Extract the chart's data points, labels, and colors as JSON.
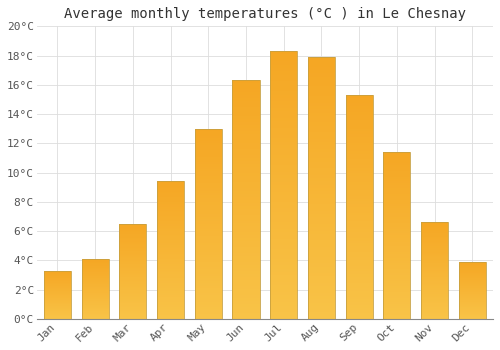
{
  "title": "Average monthly temperatures (°C ) in Le Chesnay",
  "months": [
    "Jan",
    "Feb",
    "Mar",
    "Apr",
    "May",
    "Jun",
    "Jul",
    "Aug",
    "Sep",
    "Oct",
    "Nov",
    "Dec"
  ],
  "temperatures": [
    3.3,
    4.1,
    6.5,
    9.4,
    13.0,
    16.3,
    18.3,
    17.9,
    15.3,
    11.4,
    6.6,
    3.9
  ],
  "ylim": [
    0,
    20
  ],
  "yticks": [
    0,
    2,
    4,
    6,
    8,
    10,
    12,
    14,
    16,
    18,
    20
  ],
  "ytick_labels": [
    "0°C",
    "2°C",
    "4°C",
    "6°C",
    "8°C",
    "10°C",
    "12°C",
    "14°C",
    "16°C",
    "18°C",
    "20°C"
  ],
  "bar_color_top": "#F5A623",
  "bar_color_bottom": "#F8C347",
  "bar_edge_color": "#C8A040",
  "background_color": "#FFFFFF",
  "grid_color": "#DDDDDD",
  "title_fontsize": 10,
  "tick_fontsize": 8,
  "font_family": "monospace",
  "bar_width": 0.72
}
